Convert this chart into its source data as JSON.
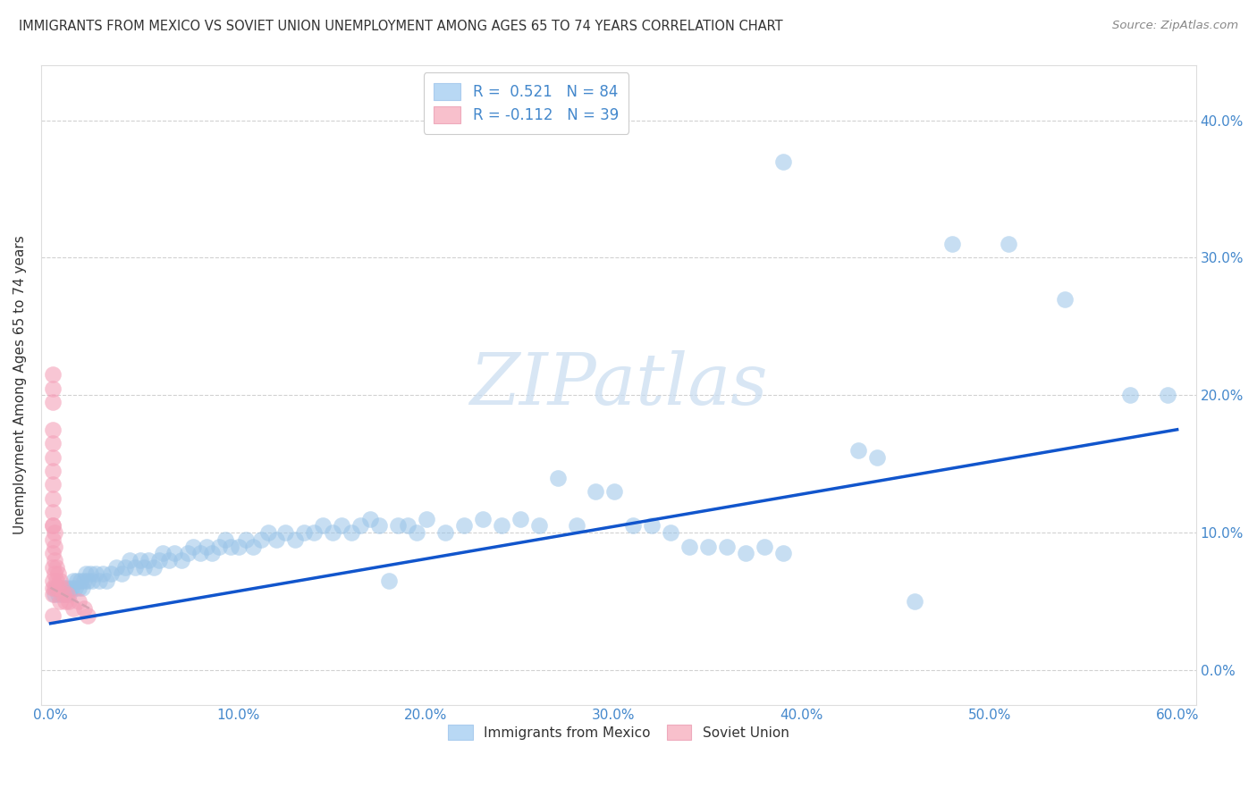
{
  "title": "IMMIGRANTS FROM MEXICO VS SOVIET UNION UNEMPLOYMENT AMONG AGES 65 TO 74 YEARS CORRELATION CHART",
  "source": "Source: ZipAtlas.com",
  "ylabel": "Unemployment Among Ages 65 to 74 years",
  "xlim": [
    -0.005,
    0.61
  ],
  "ylim": [
    -0.025,
    0.44
  ],
  "xticks": [
    0.0,
    0.1,
    0.2,
    0.3,
    0.4,
    0.5,
    0.6
  ],
  "yticks": [
    0.0,
    0.1,
    0.2,
    0.3,
    0.4
  ],
  "xtick_labels": [
    "0.0%",
    "10.0%",
    "20.0%",
    "30.0%",
    "40.0%",
    "50.0%",
    "60.0%"
  ],
  "ytick_labels": [
    "0.0%",
    "10.0%",
    "20.0%",
    "30.0%",
    "40.0%"
  ],
  "mexico_color": "#99c4e8",
  "soviet_color": "#f4a0b8",
  "mexico_line_color": "#1155cc",
  "soviet_line_color": "#d4a0b0",
  "watermark_color": "#c8dcf0",
  "background_color": "#ffffff",
  "grid_color": "#cccccc",
  "tick_color": "#4488cc",
  "mexico_scatter": [
    [
      0.002,
      0.055
    ],
    [
      0.003,
      0.06
    ],
    [
      0.004,
      0.055
    ],
    [
      0.005,
      0.06
    ],
    [
      0.006,
      0.055
    ],
    [
      0.007,
      0.06
    ],
    [
      0.008,
      0.055
    ],
    [
      0.009,
      0.06
    ],
    [
      0.01,
      0.055
    ],
    [
      0.011,
      0.06
    ],
    [
      0.012,
      0.065
    ],
    [
      0.013,
      0.06
    ],
    [
      0.014,
      0.065
    ],
    [
      0.015,
      0.06
    ],
    [
      0.016,
      0.065
    ],
    [
      0.017,
      0.06
    ],
    [
      0.018,
      0.065
    ],
    [
      0.019,
      0.07
    ],
    [
      0.02,
      0.065
    ],
    [
      0.021,
      0.07
    ],
    [
      0.022,
      0.065
    ],
    [
      0.024,
      0.07
    ],
    [
      0.026,
      0.065
    ],
    [
      0.028,
      0.07
    ],
    [
      0.03,
      0.065
    ],
    [
      0.032,
      0.07
    ],
    [
      0.035,
      0.075
    ],
    [
      0.038,
      0.07
    ],
    [
      0.04,
      0.075
    ],
    [
      0.042,
      0.08
    ],
    [
      0.045,
      0.075
    ],
    [
      0.048,
      0.08
    ],
    [
      0.05,
      0.075
    ],
    [
      0.052,
      0.08
    ],
    [
      0.055,
      0.075
    ],
    [
      0.058,
      0.08
    ],
    [
      0.06,
      0.085
    ],
    [
      0.063,
      0.08
    ],
    [
      0.066,
      0.085
    ],
    [
      0.07,
      0.08
    ],
    [
      0.073,
      0.085
    ],
    [
      0.076,
      0.09
    ],
    [
      0.08,
      0.085
    ],
    [
      0.083,
      0.09
    ],
    [
      0.086,
      0.085
    ],
    [
      0.09,
      0.09
    ],
    [
      0.093,
      0.095
    ],
    [
      0.096,
      0.09
    ],
    [
      0.1,
      0.09
    ],
    [
      0.104,
      0.095
    ],
    [
      0.108,
      0.09
    ],
    [
      0.112,
      0.095
    ],
    [
      0.116,
      0.1
    ],
    [
      0.12,
      0.095
    ],
    [
      0.125,
      0.1
    ],
    [
      0.13,
      0.095
    ],
    [
      0.135,
      0.1
    ],
    [
      0.14,
      0.1
    ],
    [
      0.145,
      0.105
    ],
    [
      0.15,
      0.1
    ],
    [
      0.155,
      0.105
    ],
    [
      0.16,
      0.1
    ],
    [
      0.165,
      0.105
    ],
    [
      0.17,
      0.11
    ],
    [
      0.175,
      0.105
    ],
    [
      0.18,
      0.065
    ],
    [
      0.185,
      0.105
    ],
    [
      0.19,
      0.105
    ],
    [
      0.195,
      0.1
    ],
    [
      0.2,
      0.11
    ],
    [
      0.21,
      0.1
    ],
    [
      0.22,
      0.105
    ],
    [
      0.23,
      0.11
    ],
    [
      0.24,
      0.105
    ],
    [
      0.25,
      0.11
    ],
    [
      0.26,
      0.105
    ],
    [
      0.27,
      0.14
    ],
    [
      0.28,
      0.105
    ],
    [
      0.29,
      0.13
    ],
    [
      0.3,
      0.13
    ],
    [
      0.31,
      0.105
    ],
    [
      0.32,
      0.105
    ],
    [
      0.33,
      0.1
    ],
    [
      0.34,
      0.09
    ],
    [
      0.35,
      0.09
    ],
    [
      0.36,
      0.09
    ],
    [
      0.37,
      0.085
    ],
    [
      0.38,
      0.09
    ],
    [
      0.39,
      0.085
    ],
    [
      0.43,
      0.16
    ],
    [
      0.44,
      0.155
    ],
    [
      0.46,
      0.05
    ],
    [
      0.48,
      0.31
    ],
    [
      0.51,
      0.31
    ],
    [
      0.54,
      0.27
    ],
    [
      0.575,
      0.2
    ],
    [
      0.595,
      0.2
    ],
    [
      0.39,
      0.37
    ]
  ],
  "soviet_scatter": [
    [
      0.001,
      0.055
    ],
    [
      0.001,
      0.065
    ],
    [
      0.001,
      0.075
    ],
    [
      0.001,
      0.085
    ],
    [
      0.001,
      0.095
    ],
    [
      0.001,
      0.105
    ],
    [
      0.001,
      0.115
    ],
    [
      0.001,
      0.125
    ],
    [
      0.001,
      0.135
    ],
    [
      0.001,
      0.145
    ],
    [
      0.001,
      0.155
    ],
    [
      0.001,
      0.165
    ],
    [
      0.001,
      0.175
    ],
    [
      0.001,
      0.195
    ],
    [
      0.001,
      0.205
    ],
    [
      0.001,
      0.215
    ],
    [
      0.001,
      0.105
    ],
    [
      0.001,
      0.06
    ],
    [
      0.002,
      0.06
    ],
    [
      0.002,
      0.07
    ],
    [
      0.002,
      0.08
    ],
    [
      0.002,
      0.09
    ],
    [
      0.002,
      0.1
    ],
    [
      0.003,
      0.065
    ],
    [
      0.003,
      0.075
    ],
    [
      0.004,
      0.07
    ],
    [
      0.004,
      0.06
    ],
    [
      0.005,
      0.065
    ],
    [
      0.006,
      0.06
    ],
    [
      0.007,
      0.055
    ],
    [
      0.008,
      0.05
    ],
    [
      0.009,
      0.055
    ],
    [
      0.01,
      0.05
    ],
    [
      0.012,
      0.045
    ],
    [
      0.015,
      0.05
    ],
    [
      0.018,
      0.045
    ],
    [
      0.02,
      0.04
    ],
    [
      0.005,
      0.05
    ],
    [
      0.001,
      0.04
    ]
  ],
  "mexico_line_x": [
    0.0,
    0.6
  ],
  "mexico_line_y": [
    0.034,
    0.175
  ],
  "soviet_line_x": [
    0.0,
    0.022
  ],
  "soviet_line_y": [
    0.06,
    0.044
  ]
}
